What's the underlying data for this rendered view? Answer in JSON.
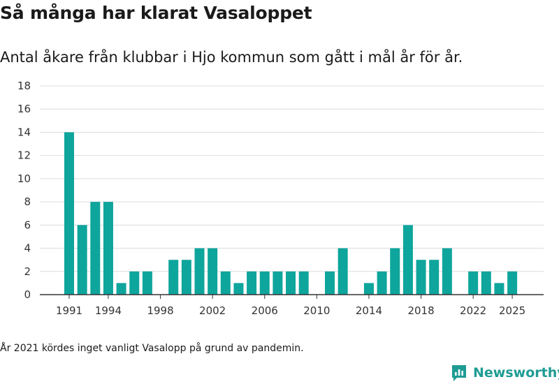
{
  "title": "Så många har klarat Vasaloppet",
  "subtitle": "Antal åkare från klubbar i Hjo kommun som gått i mål år för år.",
  "note": "År 2021 kördes inget vanligt Vasalopp på grund av pandemin.",
  "brand": {
    "name": "Newsworthy",
    "icon": "newsworthy-logo-icon",
    "color": "#1e9c94"
  },
  "chart_data": {
    "type": "bar",
    "title": "Så många har klarat Vasaloppet",
    "subtitle": "Antal åkare från klubbar i Hjo kommun som gått i mål år för år.",
    "xlabel": "",
    "ylabel": "",
    "ylim": [
      0,
      18
    ],
    "yticks": [
      0,
      2,
      4,
      6,
      8,
      10,
      12,
      14,
      16,
      18
    ],
    "xticks": [
      1991,
      1994,
      1998,
      2002,
      2006,
      2010,
      2014,
      2018,
      2022,
      2025
    ],
    "grid": true,
    "legend": "none",
    "color": "#0ea59c",
    "categories": [
      1991,
      1992,
      1993,
      1994,
      1995,
      1996,
      1997,
      1998,
      1999,
      2000,
      2001,
      2002,
      2003,
      2004,
      2005,
      2006,
      2007,
      2008,
      2009,
      2010,
      2011,
      2012,
      2013,
      2014,
      2015,
      2016,
      2017,
      2018,
      2019,
      2020,
      2021,
      2022,
      2023,
      2024,
      2025
    ],
    "values": [
      14,
      6,
      8,
      8,
      1,
      2,
      2,
      0,
      3,
      3,
      4,
      4,
      2,
      1,
      2,
      2,
      2,
      2,
      2,
      0,
      2,
      4,
      0,
      1,
      2,
      4,
      6,
      3,
      3,
      4,
      0,
      2,
      2,
      1,
      2
    ]
  }
}
